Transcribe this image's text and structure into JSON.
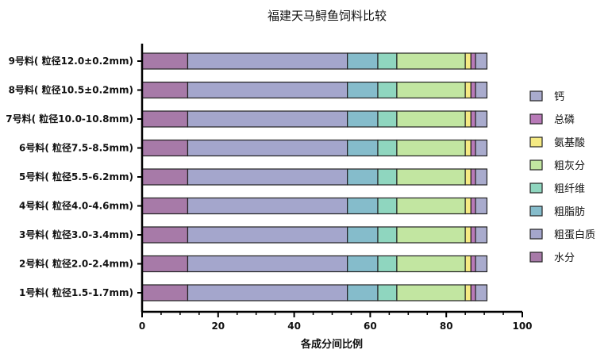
{
  "chart_data": {
    "type": "bar",
    "orientation": "horizontal",
    "stacked": true,
    "title": "福建天马鲟鱼饲料比较",
    "xlabel": "各成分间比例",
    "ylabel": "",
    "xlim": [
      0,
      100
    ],
    "xticks": [
      0,
      20,
      40,
      60,
      80,
      100
    ],
    "grid": false,
    "legend_position": "right",
    "categories": [
      "9号料( 粒径12.0±0.2mm)",
      "8号料( 粒径10.5±0.2mm)",
      "7号料( 粒径10.0-10.8mm)",
      "6号料( 粒径7.5-8.5mm)",
      "5号料( 粒径5.5-6.2mm)",
      "4号料( 粒径4.0-4.6mm)",
      "3号料( 粒径3.0-3.4mm)",
      "2号料( 粒径2.0-2.4mm)",
      "1号料( 粒径1.5-1.7mm)"
    ],
    "series": [
      {
        "name": "水分",
        "color": "#a77aa8",
        "values": [
          12,
          12,
          12,
          12,
          12,
          12,
          12,
          12,
          12
        ]
      },
      {
        "name": "粗蛋白质",
        "color": "#a4a6cc",
        "values": [
          42,
          42,
          42,
          42,
          42,
          42,
          42,
          42,
          42
        ]
      },
      {
        "name": "粗脂肪",
        "color": "#85bccb",
        "values": [
          8,
          8,
          8,
          8,
          8,
          8,
          8,
          8,
          8
        ]
      },
      {
        "name": "粗纤维",
        "color": "#8fd6bf",
        "values": [
          5,
          5,
          5,
          5,
          5,
          5,
          5,
          5,
          5
        ]
      },
      {
        "name": "粗灰分",
        "color": "#c2e6a1",
        "values": [
          18,
          18,
          18,
          18,
          18,
          18,
          18,
          18,
          18
        ]
      },
      {
        "name": "氨基酸",
        "color": "#f5ea83",
        "values": [
          1.5,
          1.5,
          1.5,
          1.5,
          1.5,
          1.5,
          1.5,
          1.5,
          1.5
        ]
      },
      {
        "name": "总磷",
        "color": "#b87ab8",
        "values": [
          1.2,
          1.2,
          1.2,
          1.2,
          1.2,
          1.2,
          1.2,
          1.2,
          1.2
        ]
      },
      {
        "name": "钙",
        "color": "#a9abcd",
        "values": [
          3,
          3,
          3,
          3,
          3,
          3,
          3,
          3,
          3
        ]
      }
    ],
    "legend_order": [
      "钙",
      "总磷",
      "氨基酸",
      "粗灰分",
      "粗纤维",
      "粗脂肪",
      "粗蛋白质",
      "水分"
    ]
  }
}
